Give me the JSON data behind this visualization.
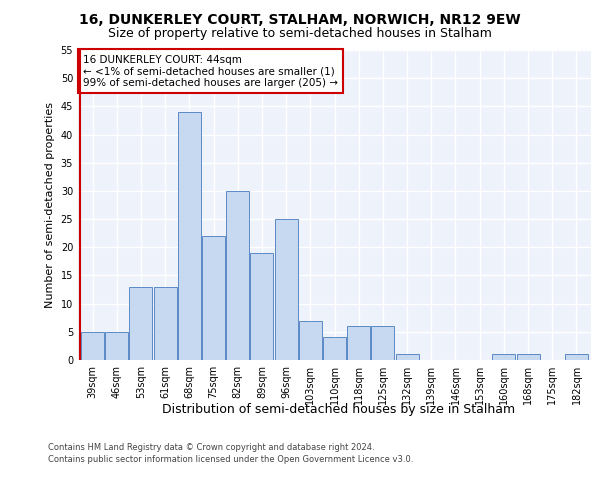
{
  "title1": "16, DUNKERLEY COURT, STALHAM, NORWICH, NR12 9EW",
  "title2": "Size of property relative to semi-detached houses in Stalham",
  "xlabel": "Distribution of semi-detached houses by size in Stalham",
  "ylabel": "Number of semi-detached properties",
  "categories": [
    "39sqm",
    "46sqm",
    "53sqm",
    "61sqm",
    "68sqm",
    "75sqm",
    "82sqm",
    "89sqm",
    "96sqm",
    "103sqm",
    "110sqm",
    "118sqm",
    "125sqm",
    "132sqm",
    "139sqm",
    "146sqm",
    "153sqm",
    "160sqm",
    "168sqm",
    "175sqm",
    "182sqm"
  ],
  "values": [
    5,
    5,
    13,
    13,
    44,
    22,
    30,
    19,
    25,
    7,
    4,
    6,
    6,
    1,
    0,
    0,
    0,
    1,
    1,
    0,
    1
  ],
  "bar_color": "#c6d9f0",
  "bar_edge_color": "#5a8ac6",
  "highlight_line_color": "#cc0000",
  "annotation_text": "16 DUNKERLEY COURT: 44sqm\n← <1% of semi-detached houses are smaller (1)\n99% of semi-detached houses are larger (205) →",
  "annotation_box_color": "#ffffff",
  "annotation_box_edge": "#cc0000",
  "footer1": "Contains HM Land Registry data © Crown copyright and database right 2024.",
  "footer2": "Contains public sector information licensed under the Open Government Licence v3.0.",
  "ylim": [
    0,
    55
  ],
  "yticks": [
    0,
    5,
    10,
    15,
    20,
    25,
    30,
    35,
    40,
    45,
    50,
    55
  ],
  "background_color": "#eef2fa",
  "grid_color": "#ffffff",
  "title1_fontsize": 10,
  "title2_fontsize": 9,
  "tick_fontsize": 7,
  "ylabel_fontsize": 8,
  "xlabel_fontsize": 9,
  "annotation_fontsize": 7.5,
  "footer_fontsize": 6
}
